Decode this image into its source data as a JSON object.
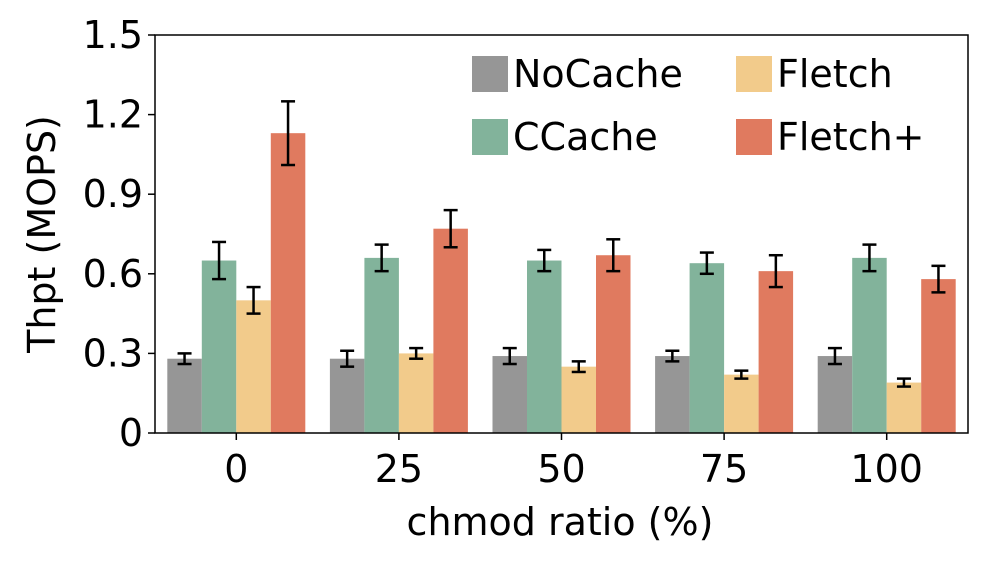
{
  "chart_data": {
    "type": "bar",
    "title": "",
    "xlabel": "chmod ratio (%)",
    "ylabel": "Thpt (MOPS)",
    "ylim": [
      0,
      1.5
    ],
    "yticks": [
      "0",
      "0.3",
      "0.6",
      "0.9",
      "1.2",
      "1.5"
    ],
    "ytick_values": [
      0,
      0.3,
      0.6,
      0.9,
      1.2,
      1.5
    ],
    "categories": [
      "0",
      "25",
      "50",
      "75",
      "100"
    ],
    "legend_position": "top-right",
    "series": [
      {
        "name": "NoCache",
        "color": "#969696",
        "values": [
          0.28,
          0.28,
          0.29,
          0.29,
          0.29
        ],
        "errors": [
          0.02,
          0.03,
          0.03,
          0.02,
          0.03
        ]
      },
      {
        "name": "CCache",
        "color": "#82b39b",
        "values": [
          0.65,
          0.66,
          0.65,
          0.64,
          0.66
        ],
        "errors": [
          0.07,
          0.05,
          0.04,
          0.04,
          0.05
        ]
      },
      {
        "name": "Fletch",
        "color": "#f2cb8b",
        "values": [
          0.5,
          0.3,
          0.25,
          0.22,
          0.19
        ],
        "errors": [
          0.05,
          0.02,
          0.02,
          0.015,
          0.015
        ]
      },
      {
        "name": "Fletch+",
        "color": "#e07a5f",
        "values": [
          1.13,
          0.77,
          0.67,
          0.61,
          0.58
        ],
        "errors": [
          0.12,
          0.07,
          0.06,
          0.06,
          0.05
        ]
      }
    ]
  }
}
